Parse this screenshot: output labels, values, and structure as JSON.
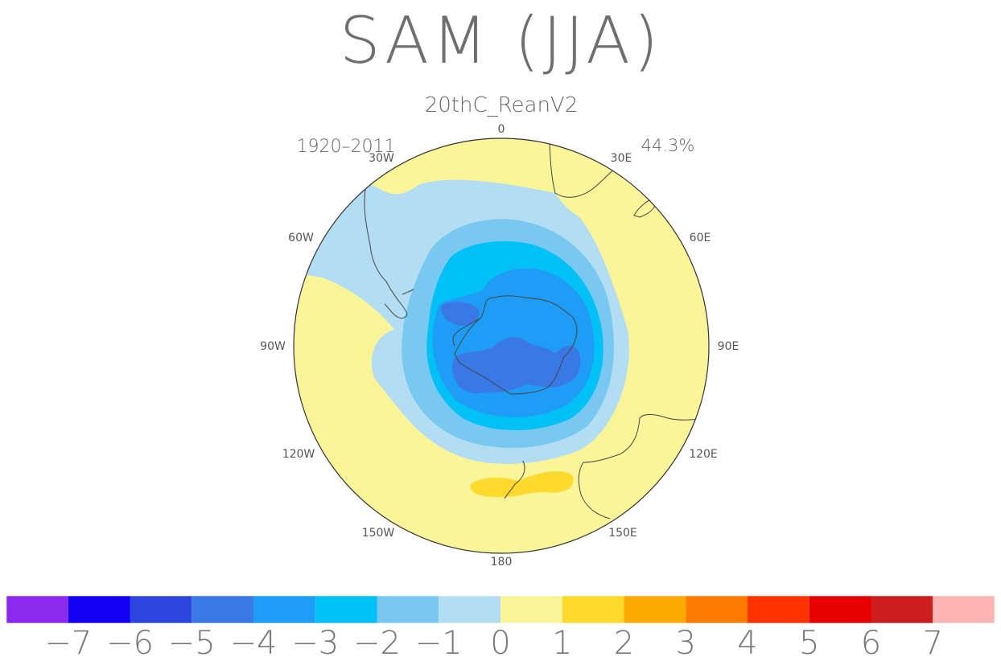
{
  "title": "SAM (JJA)",
  "subtitle": "20thC_ReanV2",
  "period": "1920–2011",
  "variance": "44.3%",
  "map": {
    "projection": "south polar stereographic",
    "longitude_labels": {
      "lon_0": "0",
      "lon_30e": "30E",
      "lon_60e": "60E",
      "lon_90e": "90E",
      "lon_120e": "120E",
      "lon_150e": "150E",
      "lon_180": "180",
      "lon_150w": "150W",
      "lon_120w": "120W",
      "lon_90w": "90W",
      "lon_60w": "60W",
      "lon_30w": "30W"
    }
  },
  "colorbar": {
    "colors": [
      "#8b2aef",
      "#1400f5",
      "#2e46e0",
      "#3a78e6",
      "#1f9cf5",
      "#00c1f5",
      "#78c8f2",
      "#b2ddf2",
      "#fbf59a",
      "#fed92e",
      "#fea900",
      "#ff7a00",
      "#ff3200",
      "#e60000",
      "#cc1e1e",
      "#ffb4b4"
    ],
    "ticks": [
      "−7",
      "−6",
      "−5",
      "−4",
      "−3",
      "−2",
      "−1",
      "0",
      "1",
      "2",
      "3",
      "4",
      "5",
      "6",
      "7"
    ]
  }
}
